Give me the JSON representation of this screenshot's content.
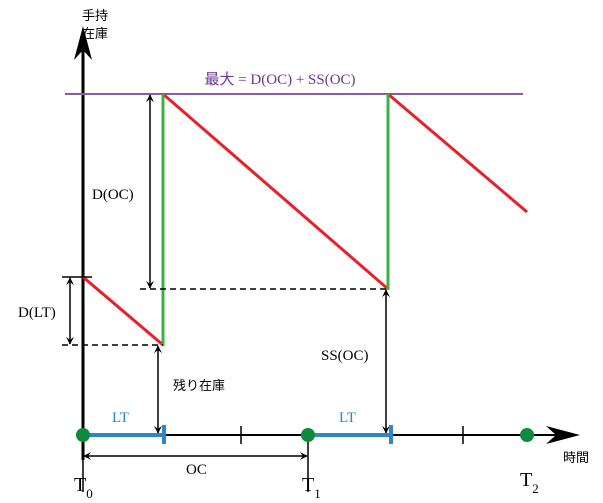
{
  "axes": {
    "y_label_line1": "手持",
    "y_label_line2": "在庫",
    "x_label": "時間"
  },
  "max_label": "最大 = D(OC) + SS(OC)",
  "labels": {
    "d_oc": "D(OC)",
    "d_lt": "D(LT)",
    "ss_oc": "SS(OC)",
    "remaining_stock": "残り在庫",
    "lt_1": "LT",
    "lt_2": "LT",
    "oc": "OC"
  },
  "time_points": [
    {
      "base": "T",
      "sub": "0"
    },
    {
      "base": "T",
      "sub": "1"
    },
    {
      "base": "T",
      "sub": "2"
    }
  ],
  "colors": {
    "max_line": "#7b3f9e",
    "depletion": "#e8202a",
    "replenish": "#3cb043",
    "lead_time": "#2e86c8",
    "order_point": "#0f8a3c"
  }
}
